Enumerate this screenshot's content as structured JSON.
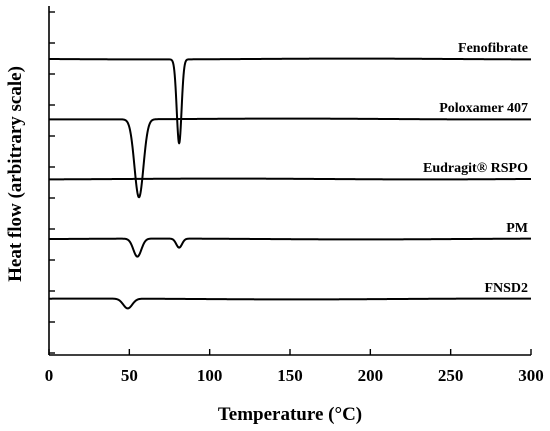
{
  "chart_data": {
    "type": "line",
    "xlabel": "Temperature (°C)",
    "ylabel": "Heat flow (arbitrary scale)",
    "xlim": [
      0,
      300
    ],
    "x_ticks": [
      "0",
      "50",
      "100",
      "150",
      "200",
      "250",
      "300"
    ],
    "y_ticks_labeled": false,
    "grid": false,
    "series": [
      {
        "name": "Fenofibrate",
        "baseline": 0.0,
        "peaks": [
          {
            "x": 81,
            "depth": 5.6,
            "width": 1.5
          }
        ]
      },
      {
        "name": "Poloxamer 407",
        "baseline": 1.0,
        "peaks": [
          {
            "x": 56,
            "depth": 5.2,
            "width": 2.8
          }
        ]
      },
      {
        "name": "Eudragit® RSPO",
        "baseline": 2.0,
        "peaks": []
      },
      {
        "name": "PM",
        "baseline": 3.0,
        "peaks": [
          {
            "x": 55,
            "depth": 1.2,
            "width": 2.5
          },
          {
            "x": 81,
            "depth": 0.6,
            "width": 1.8
          }
        ]
      },
      {
        "name": "FNSD2",
        "baseline": 4.0,
        "peaks": [
          {
            "x": 49,
            "depth": 0.65,
            "width": 2.8
          }
        ]
      }
    ]
  }
}
